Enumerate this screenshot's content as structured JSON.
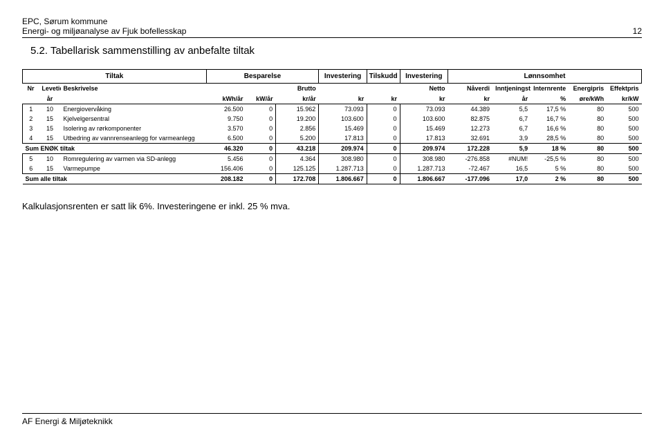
{
  "header": {
    "line1": "EPC, Sørum kommune",
    "line2": "Energi- og miljøanalyse av Fjuk bofellesskap",
    "pageNumber": "12"
  },
  "sectionTitle": "5.2.  Tabellarisk sammenstilling av anbefalte tiltak",
  "groups": {
    "tiltak": "Tiltak",
    "besparelse": "Besparelse",
    "investering": "Investering",
    "tilskudd": "Tilskudd",
    "investering2": "Investering",
    "lonnsomhet": "Lønnsomhet"
  },
  "subHeaders": {
    "nr": "Nr",
    "levetid": "Levetid",
    "beskrivelse": "Beskrivelse",
    "brutto": "Brutto",
    "netto": "Netto",
    "naverdi": "Nåverdi",
    "inntjeningstid": "Inntjeningstid",
    "internrente": "Internrente",
    "energipris": "Energipris",
    "effektpris": "Effektpris"
  },
  "units": {
    "ar": "år",
    "kwhar": "kWh/år",
    "kwar": "kW/år",
    "krar": "kr/år",
    "kr": "kr",
    "pct": "%",
    "orekwh": "øre/kWh",
    "krkw": "kr/kW"
  },
  "rows": [
    {
      "nr": "1",
      "lev": "10",
      "desc": "Energiovervåking",
      "kwh": "26.500",
      "kw": "0",
      "krar": "15.962",
      "inv": "73.093",
      "til": "0",
      "inv2": "73.093",
      "nv": "44.389",
      "int": "5,5",
      "ir": "17,5 %",
      "ep": "80",
      "fp": "500"
    },
    {
      "nr": "2",
      "lev": "15",
      "desc": "Kjelvelgersentral",
      "kwh": "9.750",
      "kw": "0",
      "krar": "19.200",
      "inv": "103.600",
      "til": "0",
      "inv2": "103.600",
      "nv": "82.875",
      "int": "6,7",
      "ir": "16,7 %",
      "ep": "80",
      "fp": "500"
    },
    {
      "nr": "3",
      "lev": "15",
      "desc": "Isolering av rørkomponenter",
      "kwh": "3.570",
      "kw": "0",
      "krar": "2.856",
      "inv": "15.469",
      "til": "0",
      "inv2": "15.469",
      "nv": "12.273",
      "int": "6,7",
      "ir": "16,6 %",
      "ep": "80",
      "fp": "500"
    },
    {
      "nr": "4",
      "lev": "15",
      "desc": "Utbedring av vannrenseanlegg for varmeanlegg",
      "kwh": "6.500",
      "kw": "0",
      "krar": "5.200",
      "inv": "17.813",
      "til": "0",
      "inv2": "17.813",
      "nv": "32.691",
      "int": "3,9",
      "ir": "28,5 %",
      "ep": "80",
      "fp": "500"
    }
  ],
  "sum1": {
    "label": "Sum ENØK tiltak",
    "kwh": "46.320",
    "kw": "0",
    "krar": "43.218",
    "inv": "209.974",
    "til": "0",
    "inv2": "209.974",
    "nv": "172.228",
    "int": "5,9",
    "ir": "18 %",
    "ep": "80",
    "fp": "500"
  },
  "rows2": [
    {
      "nr": "5",
      "lev": "10",
      "desc": "Romregulering av varmen via SD-anlegg",
      "kwh": "5.456",
      "kw": "0",
      "krar": "4.364",
      "inv": "308.980",
      "til": "0",
      "inv2": "308.980",
      "nv": "-276.858",
      "int": "#NUM!",
      "ir": "-25,5 %",
      "ep": "80",
      "fp": "500"
    },
    {
      "nr": "6",
      "lev": "15",
      "desc": "Varmepumpe",
      "kwh": "156.406",
      "kw": "0",
      "krar": "125.125",
      "inv": "1.287.713",
      "til": "0",
      "inv2": "1.287.713",
      "nv": "-72.467",
      "int": "16,5",
      "ir": "5 %",
      "ep": "80",
      "fp": "500"
    }
  ],
  "sum2": {
    "label": "Sum alle tiltak",
    "kwh": "208.182",
    "kw": "0",
    "krar": "172.708",
    "inv": "1.806.667",
    "til": "0",
    "inv2": "1.806.667",
    "nv": "-177.096",
    "int": "17,0",
    "ir": "2 %",
    "ep": "80",
    "fp": "500"
  },
  "note": "Kalkulasjonsrenten er satt lik 6%. Investeringene er inkl. 25 % mva.",
  "footer": "AF Energi & Miljøteknikk"
}
